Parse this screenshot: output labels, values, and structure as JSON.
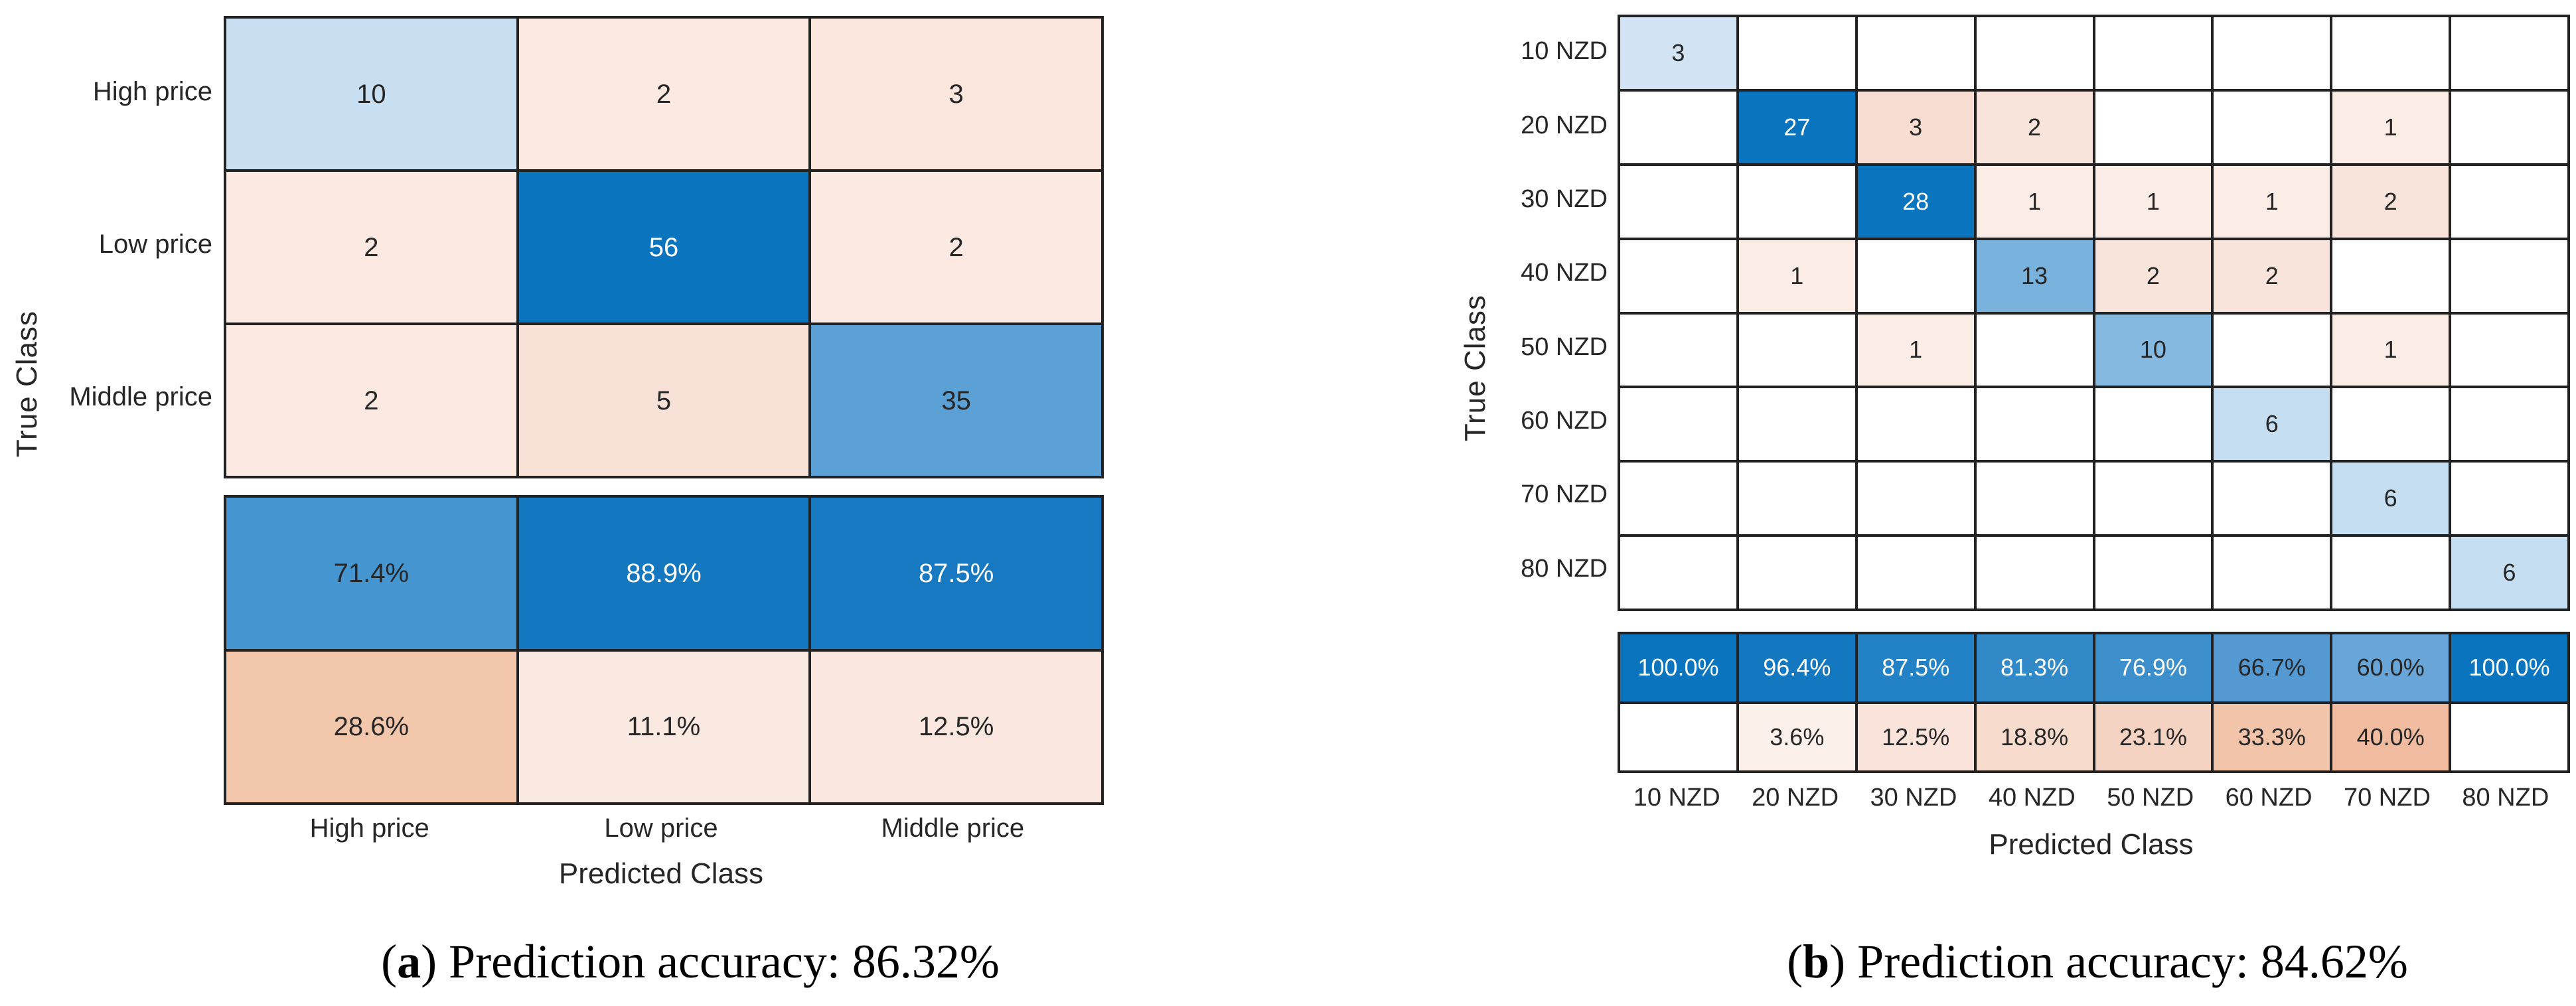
{
  "figure": {
    "panels": [
      {
        "id": "a",
        "y_axis_label": "True Class",
        "x_axis_label": "Predicted Class",
        "row_labels": [
          "High price",
          "Low price",
          "Middle price"
        ],
        "col_labels": [
          "High price",
          "Low price",
          "Middle price"
        ],
        "matrix": [
          [
            {
              "t": "10",
              "bg": "#c8dff1"
            },
            {
              "t": "2",
              "bg": "#fbe9e2"
            },
            {
              "t": "3",
              "bg": "#fae6dd"
            }
          ],
          [
            {
              "t": "2",
              "bg": "#fbe9e2"
            },
            {
              "t": "56",
              "bg": "#0b74be",
              "fg": "#ffffff"
            },
            {
              "t": "2",
              "bg": "#fbe9e2"
            }
          ],
          [
            {
              "t": "2",
              "bg": "#fbe9e2"
            },
            {
              "t": "5",
              "bg": "#f8e1d7"
            },
            {
              "t": "35",
              "bg": "#5ba1d6"
            }
          ]
        ],
        "summary": [
          [
            {
              "t": "71.4%",
              "bg": "#4495d0"
            },
            {
              "t": "88.9%",
              "bg": "#1478c0",
              "fg": "#ffffff"
            },
            {
              "t": "87.5%",
              "bg": "#1679c1",
              "fg": "#ffffff"
            }
          ],
          [
            {
              "t": "28.6%",
              "bg": "#f2c7ab"
            },
            {
              "t": "11.1%",
              "bg": "#fae9e1"
            },
            {
              "t": "12.5%",
              "bg": "#f9e7df"
            }
          ]
        ],
        "caption": {
          "open": "(",
          "letter": "a",
          "close": ")",
          "text": " Prediction accuracy: 86.32%"
        }
      },
      {
        "id": "b",
        "y_axis_label": "True Class",
        "x_axis_label": "Predicted Class",
        "row_labels": [
          "10 NZD",
          "20 NZD",
          "30 NZD",
          "40 NZD",
          "50 NZD",
          "60 NZD",
          "70 NZD",
          "80 NZD"
        ],
        "col_labels": [
          "10 NZD",
          "20 NZD",
          "30 NZD",
          "40 NZD",
          "50 NZD",
          "60 NZD",
          "70 NZD",
          "80 NZD"
        ],
        "matrix": [
          [
            {
              "t": "3",
              "bg": "#d2e4f3"
            },
            {
              "t": ""
            },
            {
              "t": ""
            },
            {
              "t": ""
            },
            {
              "t": ""
            },
            {
              "t": ""
            },
            {
              "t": ""
            },
            {
              "t": ""
            }
          ],
          [
            {
              "t": ""
            },
            {
              "t": "27",
              "bg": "#0b74be",
              "fg": "#ffffff"
            },
            {
              "t": "3",
              "bg": "#f7ddd2"
            },
            {
              "t": "2",
              "bg": "#f9e4db"
            },
            {
              "t": ""
            },
            {
              "t": ""
            },
            {
              "t": "1",
              "bg": "#fbece6"
            },
            {
              "t": ""
            }
          ],
          [
            {
              "t": ""
            },
            {
              "t": ""
            },
            {
              "t": "28",
              "bg": "#0b74be",
              "fg": "#ffffff"
            },
            {
              "t": "1",
              "bg": "#fbece6"
            },
            {
              "t": "1",
              "bg": "#fbece6"
            },
            {
              "t": "1",
              "bg": "#fbece6"
            },
            {
              "t": "2",
              "bg": "#f9e4db"
            },
            {
              "t": ""
            }
          ],
          [
            {
              "t": ""
            },
            {
              "t": "1",
              "bg": "#fbece6"
            },
            {
              "t": ""
            },
            {
              "t": "13",
              "bg": "#79b2dd"
            },
            {
              "t": "2",
              "bg": "#f9e4db"
            },
            {
              "t": "2",
              "bg": "#f9e4db"
            },
            {
              "t": ""
            },
            {
              "t": ""
            }
          ],
          [
            {
              "t": ""
            },
            {
              "t": ""
            },
            {
              "t": "1",
              "bg": "#fbece6"
            },
            {
              "t": ""
            },
            {
              "t": "10",
              "bg": "#85b9e0"
            },
            {
              "t": ""
            },
            {
              "t": "1",
              "bg": "#fbece6"
            },
            {
              "t": ""
            }
          ],
          [
            {
              "t": ""
            },
            {
              "t": ""
            },
            {
              "t": ""
            },
            {
              "t": ""
            },
            {
              "t": ""
            },
            {
              "t": "6",
              "bg": "#c6def1"
            },
            {
              "t": ""
            },
            {
              "t": ""
            }
          ],
          [
            {
              "t": ""
            },
            {
              "t": ""
            },
            {
              "t": ""
            },
            {
              "t": ""
            },
            {
              "t": ""
            },
            {
              "t": ""
            },
            {
              "t": "6",
              "bg": "#c6def1"
            },
            {
              "t": ""
            }
          ],
          [
            {
              "t": ""
            },
            {
              "t": ""
            },
            {
              "t": ""
            },
            {
              "t": ""
            },
            {
              "t": ""
            },
            {
              "t": ""
            },
            {
              "t": ""
            },
            {
              "t": "6",
              "bg": "#c6def1"
            }
          ]
        ],
        "summary": [
          [
            {
              "t": "100.0%",
              "bg": "#0b74be",
              "fg": "#ffffff"
            },
            {
              "t": "96.4%",
              "bg": "#1478c0",
              "fg": "#ffffff"
            },
            {
              "t": "87.5%",
              "bg": "#2382c5",
              "fg": "#ffffff"
            },
            {
              "t": "81.3%",
              "bg": "#3289c8",
              "fg": "#ffffff"
            },
            {
              "t": "76.9%",
              "bg": "#3d8fcb",
              "fg": "#ffffff"
            },
            {
              "t": "66.7%",
              "bg": "#5599d3"
            },
            {
              "t": "60.0%",
              "bg": "#68a5d8"
            },
            {
              "t": "100.0%",
              "bg": "#0b74be",
              "fg": "#ffffff"
            }
          ],
          [
            {
              "t": ""
            },
            {
              "t": "3.6%",
              "bg": "#fcf0ea"
            },
            {
              "t": "12.5%",
              "bg": "#f9e3da"
            },
            {
              "t": "18.8%",
              "bg": "#f7dbcd"
            },
            {
              "t": "23.1%",
              "bg": "#f5d3c2"
            },
            {
              "t": "33.3%",
              "bg": "#f2c5ab"
            },
            {
              "t": "40.0%",
              "bg": "#f0bb9e"
            },
            {
              "t": ""
            }
          ]
        ],
        "caption": {
          "open": "(",
          "letter": "b",
          "close": ")",
          "text": " Prediction accuracy: 84.62%"
        }
      }
    ],
    "colors": {
      "diagonal_max_blue": "#0b74be",
      "off_diagonal_salmon": "#f2c7ab",
      "grid_line": "#222222",
      "text_dark": "#262626",
      "text_light": "#ffffff"
    }
  },
  "chart_data": [
    {
      "type": "heatmap",
      "subtype": "confusion-matrix",
      "panel": "a",
      "xlabel": "Predicted Class",
      "ylabel": "True Class",
      "categories": [
        "High price",
        "Low price",
        "Middle price"
      ],
      "matrix": [
        [
          10,
          2,
          3
        ],
        [
          2,
          56,
          2
        ],
        [
          2,
          5,
          35
        ]
      ],
      "column_summary_correct_pct": [
        71.4,
        88.9,
        87.5
      ],
      "column_summary_incorrect_pct": [
        28.6,
        11.1,
        12.5
      ],
      "caption": "(a) Prediction accuracy: 86.32%",
      "accuracy_pct": 86.32,
      "legend": "none",
      "grid": true
    },
    {
      "type": "heatmap",
      "subtype": "confusion-matrix",
      "panel": "b",
      "xlabel": "Predicted Class",
      "ylabel": "True Class",
      "categories": [
        "10 NZD",
        "20 NZD",
        "30 NZD",
        "40 NZD",
        "50 NZD",
        "60 NZD",
        "70 NZD",
        "80 NZD"
      ],
      "matrix": [
        [
          3,
          0,
          0,
          0,
          0,
          0,
          0,
          0
        ],
        [
          0,
          27,
          3,
          2,
          0,
          0,
          1,
          0
        ],
        [
          0,
          0,
          28,
          1,
          1,
          1,
          2,
          0
        ],
        [
          0,
          1,
          0,
          13,
          2,
          2,
          0,
          0
        ],
        [
          0,
          0,
          1,
          0,
          10,
          0,
          1,
          0
        ],
        [
          0,
          0,
          0,
          0,
          0,
          6,
          0,
          0
        ],
        [
          0,
          0,
          0,
          0,
          0,
          0,
          6,
          0
        ],
        [
          0,
          0,
          0,
          0,
          0,
          0,
          0,
          6
        ]
      ],
      "column_summary_correct_pct": [
        100.0,
        96.4,
        87.5,
        81.3,
        76.9,
        66.7,
        60.0,
        100.0
      ],
      "column_summary_incorrect_pct": [
        null,
        3.6,
        12.5,
        18.8,
        23.1,
        33.3,
        40.0,
        null
      ],
      "caption": "(b) Prediction accuracy: 84.62%",
      "accuracy_pct": 84.62,
      "legend": "none",
      "grid": true
    }
  ]
}
